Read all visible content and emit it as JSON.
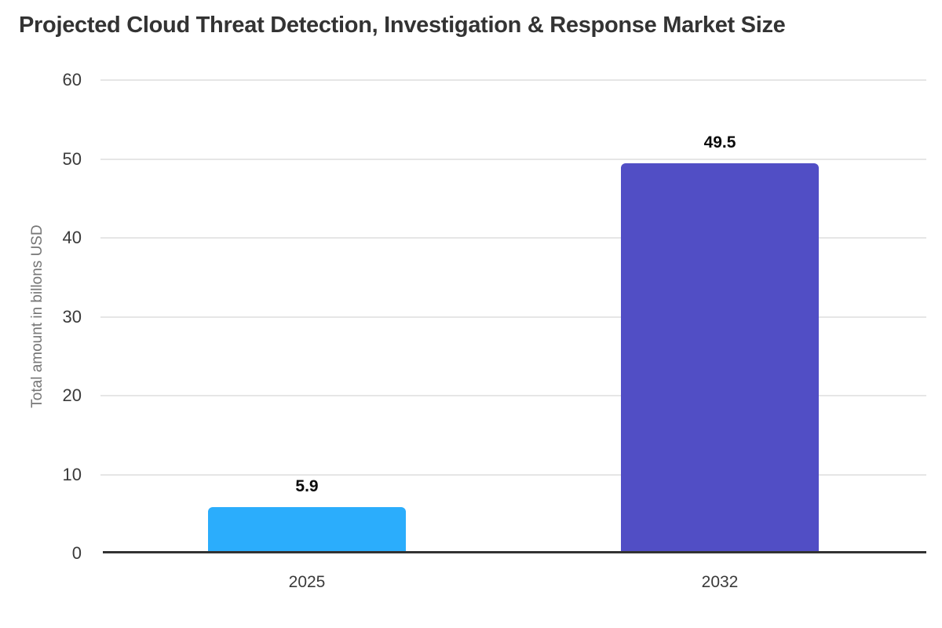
{
  "page": {
    "background_color": "#ffffff"
  },
  "chart_data": {
    "type": "bar",
    "title": "Projected Cloud Threat Detection, Investigation & Response Market Size",
    "xlabel": "",
    "ylabel": "Total amount in billons USD",
    "categories": [
      "2025",
      "2032"
    ],
    "values": [
      5.9,
      49.5
    ],
    "value_labels": [
      "5.9",
      "49.5"
    ],
    "bar_colors": [
      "#2badfc",
      "#514ec5"
    ],
    "ylim": [
      0,
      60
    ],
    "yticks": [
      0,
      10,
      20,
      30,
      40,
      50,
      60
    ],
    "grid": "horizontal",
    "legend_position": "none",
    "colors": {
      "bar_2025": "#2badfc",
      "bar_2032": "#514ec5",
      "title_text": "#333333",
      "tick_text": "#3a3a3a",
      "axis_label_text": "#757575",
      "gridline": "#e6e6e6",
      "baseline": "#333333",
      "value_label_text": "#0a0a0a"
    }
  }
}
